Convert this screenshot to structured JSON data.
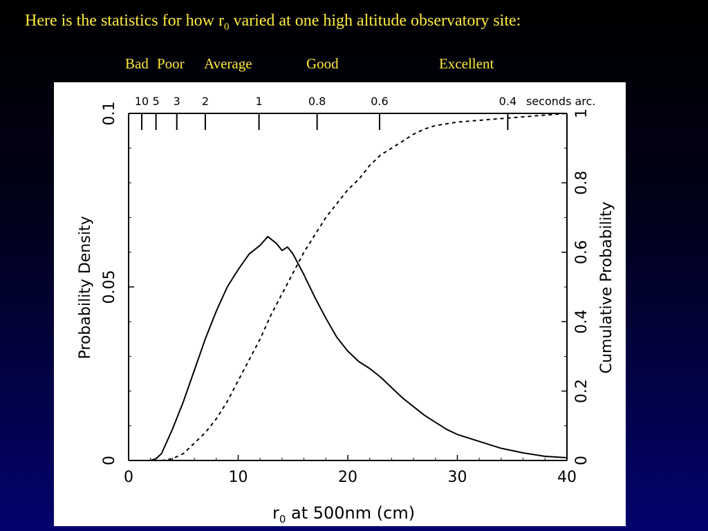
{
  "slide": {
    "title_before": "Here is the statistics for how r",
    "title_sub": "0",
    "title_after": " varied at one high altitude observatory site:"
  },
  "quality_labels": [
    "Bad",
    "Poor",
    "Average",
    "Good",
    "Excellent"
  ],
  "chart_data": {
    "type": "line",
    "xlabel_main": "r",
    "xlabel_sub": "0",
    "xlabel_rest": " at 500nm (cm)",
    "ylabel_left": "Probability Density",
    "ylabel_right": "Cumulative Probability",
    "xlim": [
      0,
      40
    ],
    "ylim_left": [
      0,
      0.1
    ],
    "ylim_right": [
      0,
      1
    ],
    "x_ticks": [
      0,
      10,
      20,
      30,
      40
    ],
    "y_left_ticks": [
      "0",
      "0.05",
      "0.1"
    ],
    "y_right_ticks": [
      "0",
      "0.2",
      "0.4",
      "0.6",
      "0.8",
      "1"
    ],
    "top_axis_unit": "seconds arc.",
    "top_axis_ticks": [
      {
        "label": "10",
        "r0": 1.2
      },
      {
        "label": "5",
        "r0": 2.5
      },
      {
        "label": "3",
        "r0": 4.4
      },
      {
        "label": "2",
        "r0": 7.0
      },
      {
        "label": "1",
        "r0": 11.9
      },
      {
        "label": "0.8",
        "r0": 17.2
      },
      {
        "label": "0.6",
        "r0": 22.9
      },
      {
        "label": "0.4",
        "r0": 34.6
      }
    ],
    "series": [
      {
        "style": "solid",
        "axis": "left",
        "x": [
          2,
          2.5,
          3,
          4,
          5,
          6,
          7,
          8,
          9,
          10,
          11,
          12,
          12.7,
          13.5,
          14,
          14.5,
          15,
          15.5,
          16,
          17,
          18,
          19,
          20,
          21,
          22,
          23,
          24,
          25,
          26,
          27,
          28,
          29,
          30,
          32,
          34,
          36,
          38,
          40
        ],
        "y": [
          0.0,
          0.0005,
          0.002,
          0.009,
          0.017,
          0.026,
          0.035,
          0.043,
          0.05,
          0.055,
          0.0595,
          0.062,
          0.0645,
          0.0625,
          0.0605,
          0.0615,
          0.0595,
          0.0565,
          0.0535,
          0.047,
          0.041,
          0.0355,
          0.0315,
          0.0285,
          0.0265,
          0.024,
          0.021,
          0.018,
          0.0155,
          0.013,
          0.011,
          0.009,
          0.0075,
          0.0055,
          0.0035,
          0.0022,
          0.0012,
          0.0008
        ]
      },
      {
        "style": "dashed",
        "axis": "right",
        "x": [
          3,
          4,
          5,
          6,
          7,
          8,
          9,
          10,
          11,
          12,
          13,
          14,
          15,
          16,
          17,
          18,
          19,
          20,
          21,
          22,
          23,
          24,
          25,
          26,
          27,
          28,
          29,
          30,
          32,
          34,
          36,
          38,
          40
        ],
        "y": [
          0.0,
          0.005,
          0.02,
          0.05,
          0.08,
          0.12,
          0.17,
          0.23,
          0.29,
          0.35,
          0.42,
          0.48,
          0.54,
          0.6,
          0.65,
          0.7,
          0.74,
          0.78,
          0.81,
          0.85,
          0.88,
          0.9,
          0.92,
          0.94,
          0.955,
          0.965,
          0.97,
          0.975,
          0.98,
          0.985,
          0.99,
          0.995,
          1.0
        ]
      }
    ]
  }
}
